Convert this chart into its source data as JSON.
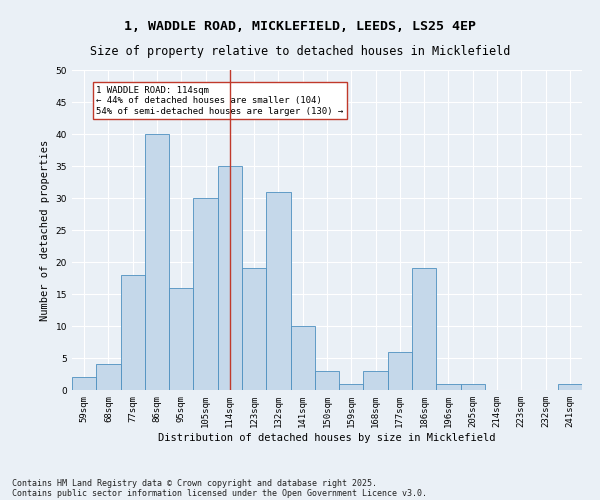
{
  "title1": "1, WADDLE ROAD, MICKLEFIELD, LEEDS, LS25 4EP",
  "title2": "Size of property relative to detached houses in Micklefield",
  "xlabel": "Distribution of detached houses by size in Micklefield",
  "ylabel": "Number of detached properties",
  "bins": [
    "59sqm",
    "68sqm",
    "77sqm",
    "86sqm",
    "95sqm",
    "105sqm",
    "114sqm",
    "123sqm",
    "132sqm",
    "141sqm",
    "150sqm",
    "159sqm",
    "168sqm",
    "177sqm",
    "186sqm",
    "196sqm",
    "205sqm",
    "214sqm",
    "223sqm",
    "232sqm",
    "241sqm"
  ],
  "values": [
    2,
    4,
    18,
    40,
    16,
    30,
    35,
    19,
    31,
    10,
    3,
    1,
    3,
    6,
    19,
    1,
    1,
    0,
    0,
    0,
    1
  ],
  "bar_color": "#c5d8ea",
  "bar_edge_color": "#4d90c0",
  "vline_x": 6,
  "vline_color": "#c0392b",
  "annotation_text": "1 WADDLE ROAD: 114sqm\n← 44% of detached houses are smaller (104)\n54% of semi-detached houses are larger (130) →",
  "annotation_box_color": "#ffffff",
  "annotation_box_edge": "#c0392b",
  "ylim": [
    0,
    50
  ],
  "yticks": [
    0,
    5,
    10,
    15,
    20,
    25,
    30,
    35,
    40,
    45,
    50
  ],
  "footer1": "Contains HM Land Registry data © Crown copyright and database right 2025.",
  "footer2": "Contains public sector information licensed under the Open Government Licence v3.0.",
  "bg_color": "#eaf0f6",
  "plot_bg_color": "#eaf0f6",
  "grid_color": "#ffffff",
  "title_fontsize": 9.5,
  "subtitle_fontsize": 8.5,
  "axis_label_fontsize": 7.5,
  "tick_fontsize": 6.5,
  "annot_fontsize": 6.5,
  "footer_fontsize": 6.0
}
